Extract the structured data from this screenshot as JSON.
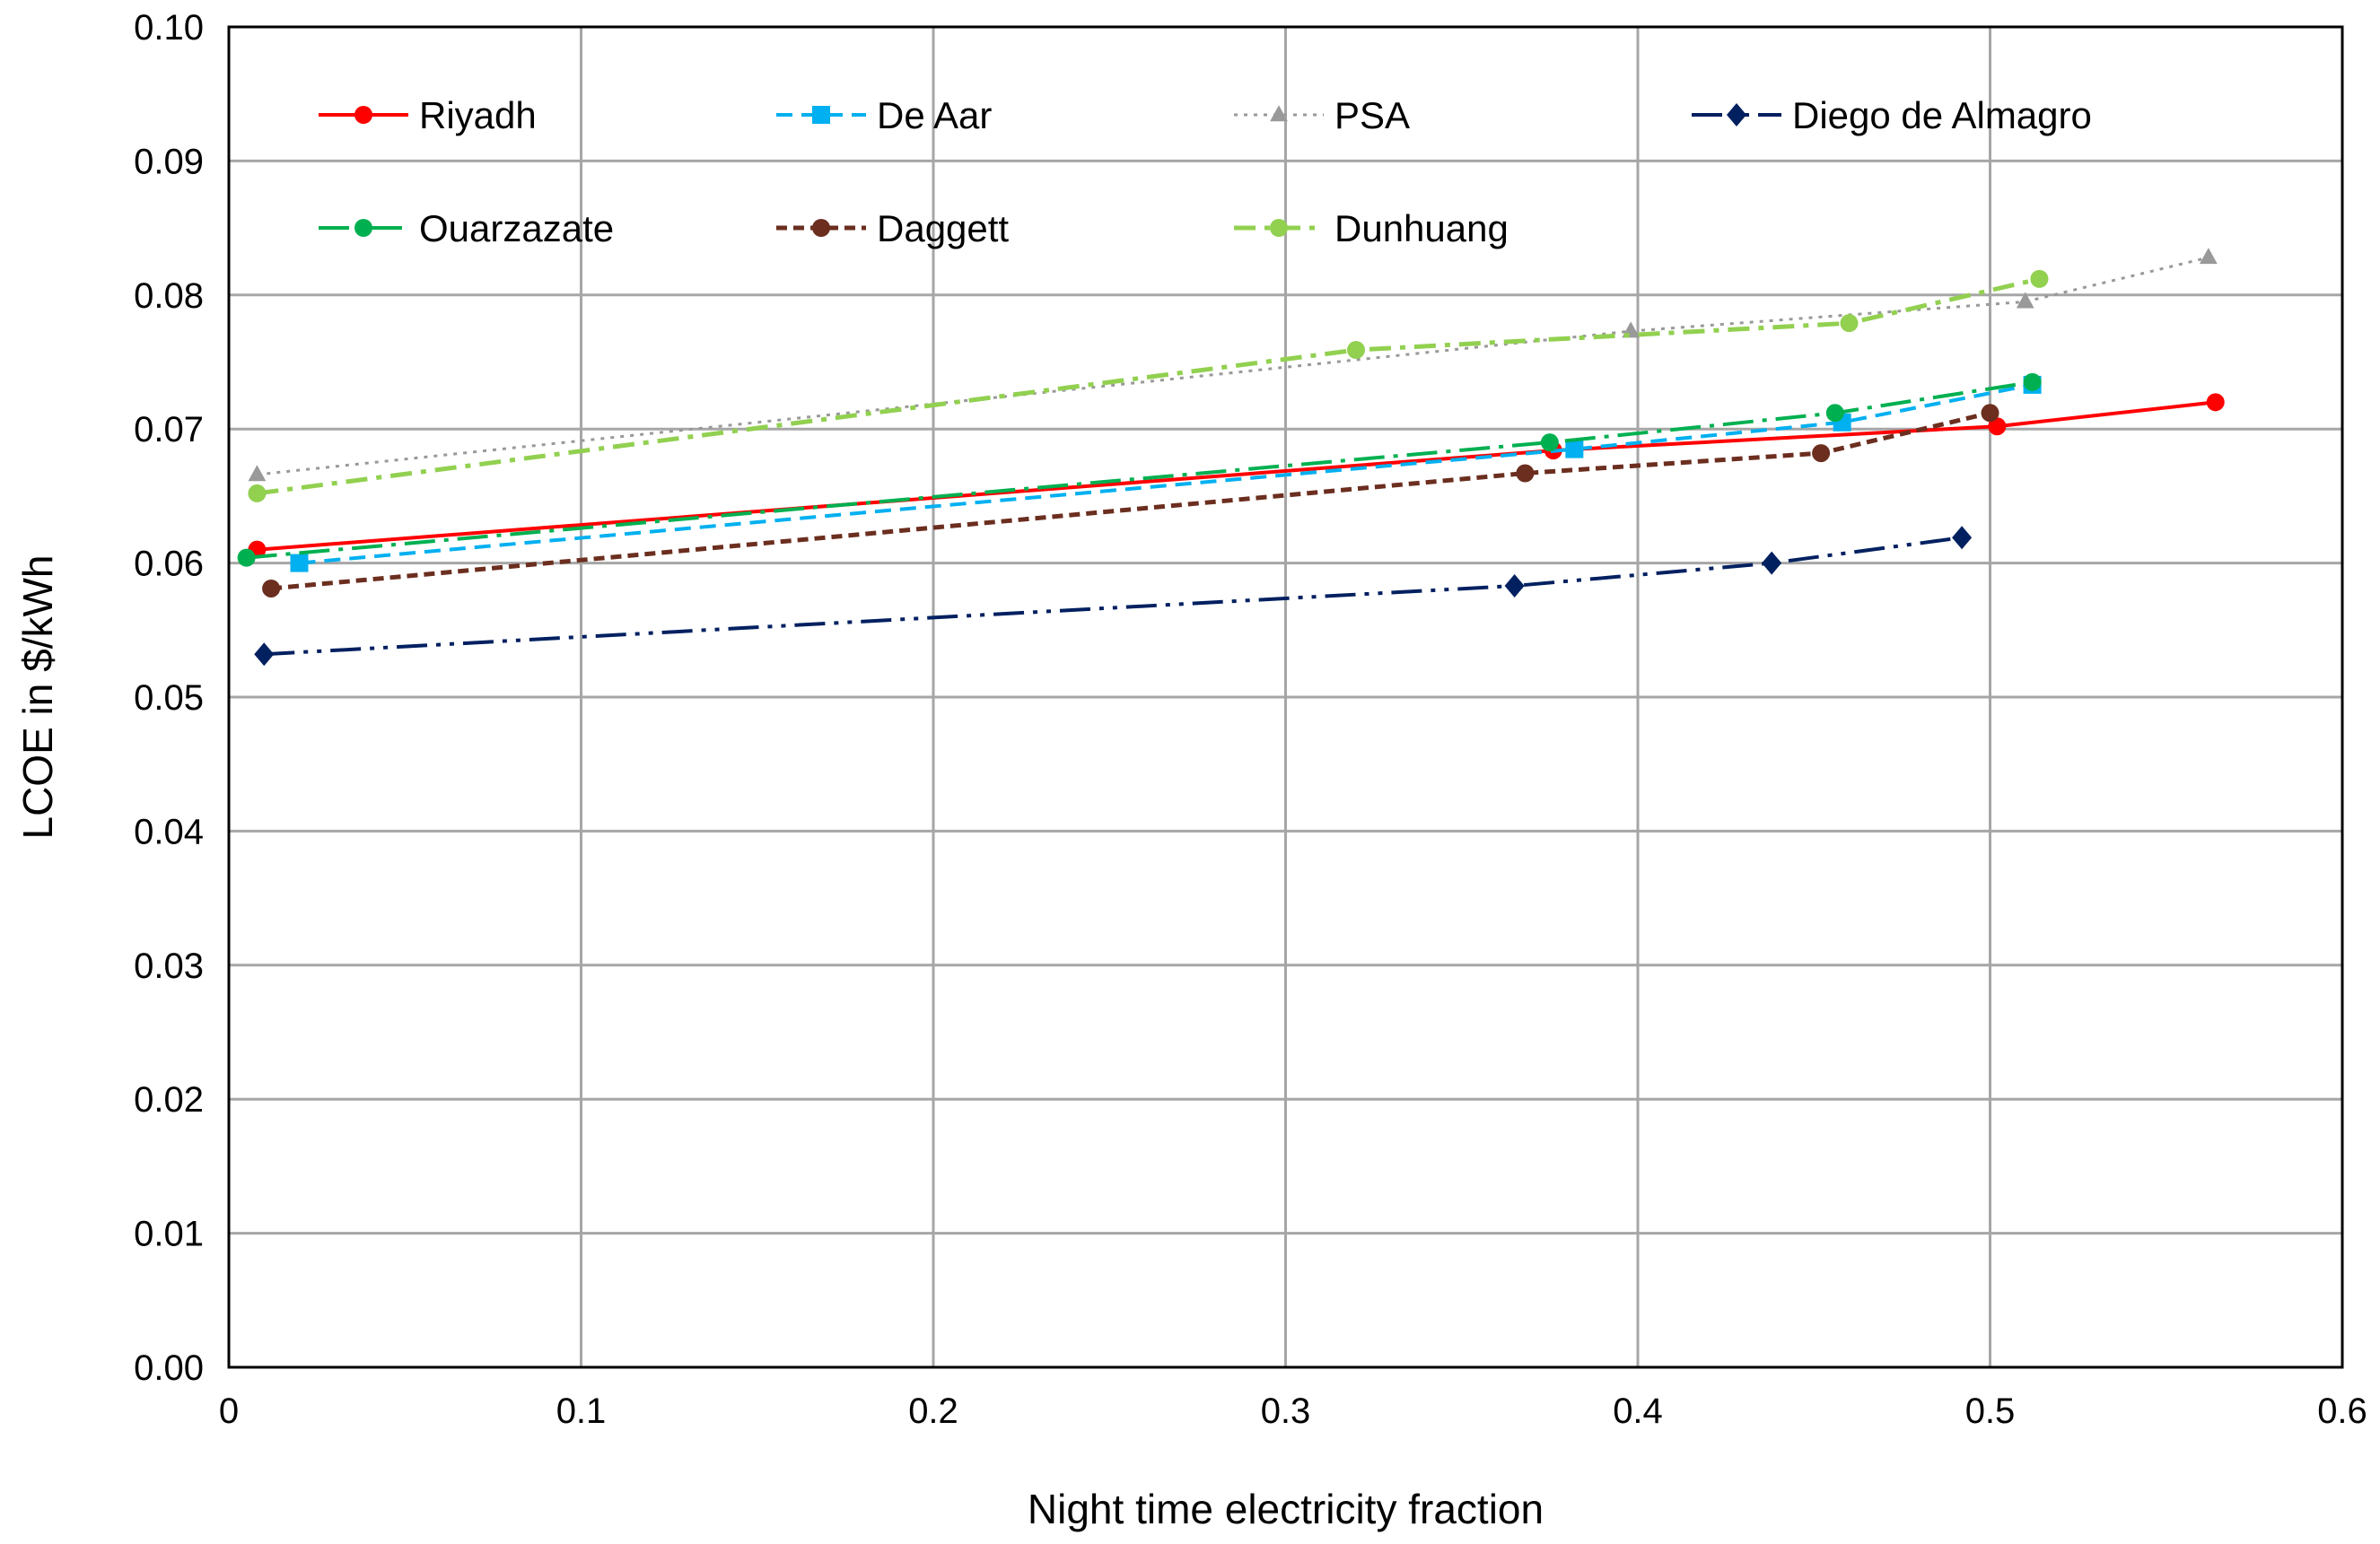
{
  "chart_data": {
    "type": "line",
    "title": "",
    "xlabel": "Night time electricity fraction",
    "ylabel": "LCOE in $/kWh",
    "xlim": [
      0,
      0.6
    ],
    "ylim": [
      0,
      0.1
    ],
    "grid": true,
    "legend_position": "top-inside",
    "x_ticks": [
      "0",
      "0.1",
      "0.2",
      "0.3",
      "0.4",
      "0.5",
      "0.6"
    ],
    "y_ticks": [
      "0.00",
      "0.01",
      "0.02",
      "0.03",
      "0.04",
      "0.05",
      "0.06",
      "0.07",
      "0.08",
      "0.09",
      "0.10"
    ],
    "series": [
      {
        "name": "Riyadh",
        "color": "#ff0000",
        "line_style": "solid",
        "marker": "circle",
        "x": [
          0.008,
          0.376,
          0.502,
          0.564
        ],
        "y": [
          0.061,
          0.0684,
          0.0702,
          0.072
        ]
      },
      {
        "name": "De Aar",
        "color": "#00b0f0",
        "line_style": "dash",
        "marker": "square",
        "x": [
          0.02,
          0.382,
          0.458,
          0.512
        ],
        "y": [
          0.06,
          0.0685,
          0.0705,
          0.0733
        ]
      },
      {
        "name": "PSA",
        "color": "#999999",
        "line_style": "dot",
        "marker": "triangle",
        "x": [
          0.008,
          0.398,
          0.51,
          0.562
        ],
        "y": [
          0.0666,
          0.0773,
          0.0795,
          0.0828
        ]
      },
      {
        "name": "Diego de Almagro",
        "color": "#002060",
        "line_style": "long-dash-dot-dot",
        "marker": "diamond",
        "x": [
          0.01,
          0.365,
          0.438,
          0.492
        ],
        "y": [
          0.0532,
          0.0583,
          0.06,
          0.0619
        ]
      },
      {
        "name": "Ouarzazate",
        "color": "#00b050",
        "line_style": "long-dash-dot",
        "marker": "circle",
        "x": [
          0.005,
          0.375,
          0.456,
          0.512
        ],
        "y": [
          0.0604,
          0.069,
          0.0712,
          0.0735
        ]
      },
      {
        "name": "Daggett",
        "color": "#6b2e1f",
        "line_style": "short-dash",
        "marker": "circle",
        "x": [
          0.012,
          0.368,
          0.452,
          0.5
        ],
        "y": [
          0.0581,
          0.0667,
          0.0682,
          0.0712
        ]
      },
      {
        "name": "Dunhuang",
        "color": "#92d050",
        "line_style": "dash-dot",
        "marker": "circle",
        "x": [
          0.008,
          0.32,
          0.46,
          0.514
        ],
        "y": [
          0.0652,
          0.0759,
          0.0779,
          0.0812
        ]
      }
    ]
  }
}
